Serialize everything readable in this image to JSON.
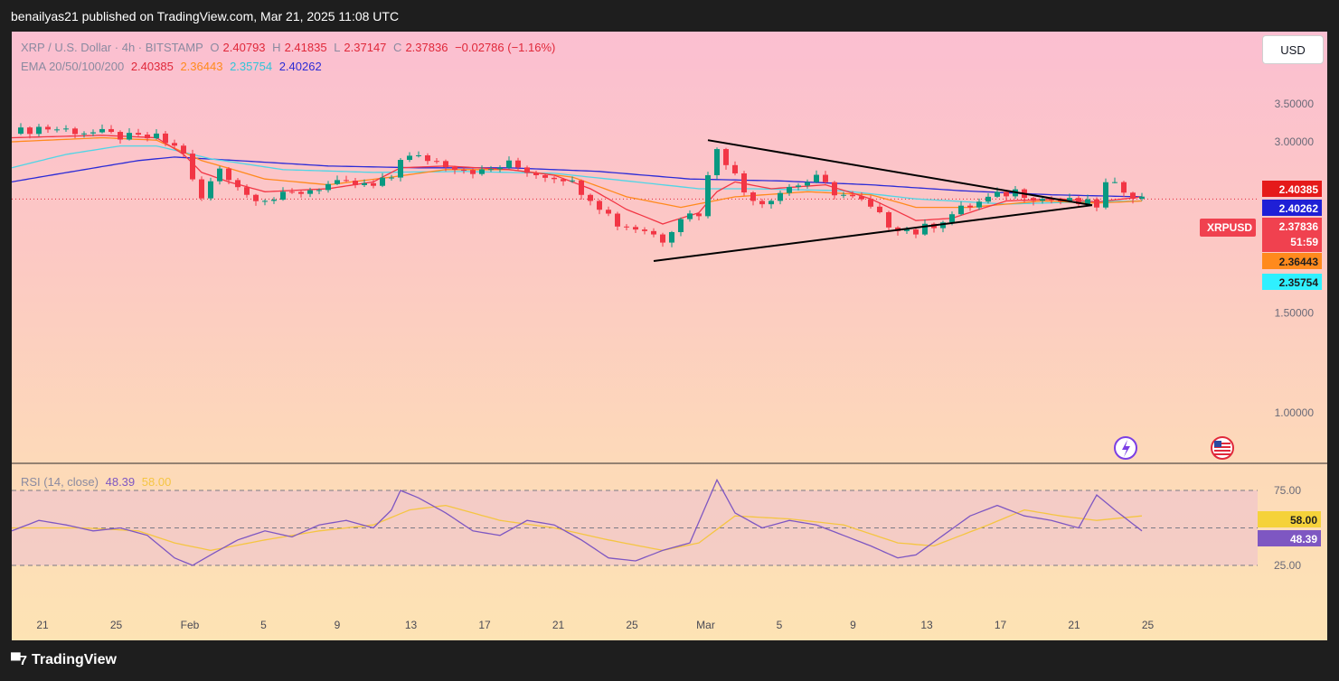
{
  "header": {
    "publisher": "benailyas21 published on TradingView.com, Mar 21, 2025 11:08 UTC"
  },
  "legend": {
    "symbol": "XRP / U.S. Dollar · 4h · BITSTAMP",
    "o_label": "O",
    "o": "2.40793",
    "h_label": "H",
    "h": "2.41835",
    "l_label": "L",
    "l": "2.37147",
    "c_label": "C",
    "c": "2.37836",
    "change": "−0.02786 (−1.16%)",
    "ema_label": "EMA 20/50/100/200",
    "ema20": "2.40385",
    "ema50": "2.36443",
    "ema100": "2.35754",
    "ema200": "2.40262"
  },
  "currency_button": "USD",
  "price_axis": {
    "ticks": [
      "3.50000",
      "3.00000",
      "1.50000",
      "1.00000"
    ]
  },
  "badges": {
    "ema20": "2.40385",
    "ema200": "2.40262",
    "symbol": "XRPUSD",
    "price": "2.37836",
    "countdown": "51:59",
    "ema50": "2.36443",
    "ema100": "2.35754"
  },
  "rsi": {
    "label": "RSI (14, close)",
    "value": "48.39",
    "ma": "58.00",
    "ticks": [
      "75.00",
      "25.00"
    ],
    "badge_ma": "58.00",
    "badge_value": "48.39"
  },
  "x_axis": {
    "ticks": [
      "21",
      "25",
      "Feb",
      "5",
      "9",
      "13",
      "17",
      "21",
      "25",
      "Mar",
      "5",
      "9",
      "13",
      "17",
      "21",
      "25"
    ]
  },
  "footer": {
    "logo": "TradingView"
  },
  "colors": {
    "up": "#089981",
    "down": "#f23645",
    "ema20": "#f23645",
    "ema50": "#ff8a1d",
    "ema100": "#4fd5e6",
    "ema200": "#2b2bd6",
    "rsi_line": "#7e57c2",
    "rsi_ma": "#f5c542"
  },
  "chart_data": {
    "type": "candlestick",
    "xlabels": [
      "21",
      "25",
      "Feb",
      "5",
      "9",
      "13",
      "17",
      "21",
      "25",
      "Mar",
      "5",
      "9",
      "13",
      "17",
      "21",
      "25"
    ],
    "price_keypoints": [
      [
        0,
        3.1
      ],
      [
        3,
        3.18
      ],
      [
        6,
        3.15
      ],
      [
        10,
        3.1
      ],
      [
        13,
        3.05
      ],
      [
        16,
        3.05
      ],
      [
        19,
        2.88
      ],
      [
        20,
        2.55
      ],
      [
        21,
        2.38
      ],
      [
        23,
        2.7
      ],
      [
        26,
        2.42
      ],
      [
        29,
        2.38
      ],
      [
        32,
        2.45
      ],
      [
        35,
        2.52
      ],
      [
        38,
        2.52
      ],
      [
        40,
        2.5
      ],
      [
        42,
        2.6
      ],
      [
        43,
        2.82
      ],
      [
        46,
        2.8
      ],
      [
        49,
        2.72
      ],
      [
        52,
        2.65
      ],
      [
        55,
        2.74
      ],
      [
        58,
        2.64
      ],
      [
        61,
        2.6
      ],
      [
        64,
        2.4
      ],
      [
        67,
        2.15
      ],
      [
        70,
        2.1
      ],
      [
        72,
        2.02
      ],
      [
        74,
        2.22
      ],
      [
        76,
        2.25
      ],
      [
        78,
        2.95
      ],
      [
        79,
        2.78
      ],
      [
        81,
        2.45
      ],
      [
        83,
        2.35
      ],
      [
        86,
        2.5
      ],
      [
        89,
        2.58
      ],
      [
        91,
        2.45
      ],
      [
        94,
        2.35
      ],
      [
        97,
        2.15
      ],
      [
        100,
        2.08
      ],
      [
        102,
        2.15
      ],
      [
        105,
        2.28
      ],
      [
        108,
        2.38
      ],
      [
        111,
        2.46
      ],
      [
        114,
        2.38
      ],
      [
        117,
        2.35
      ],
      [
        120,
        2.32
      ],
      [
        121,
        2.52
      ],
      [
        123,
        2.48
      ],
      [
        125,
        2.38
      ]
    ],
    "ema20_keypoints": [
      [
        0,
        3.05
      ],
      [
        10,
        3.08
      ],
      [
        16,
        3.05
      ],
      [
        19,
        2.85
      ],
      [
        21,
        2.65
      ],
      [
        24,
        2.55
      ],
      [
        28,
        2.45
      ],
      [
        35,
        2.48
      ],
      [
        40,
        2.55
      ],
      [
        43,
        2.7
      ],
      [
        48,
        2.72
      ],
      [
        55,
        2.68
      ],
      [
        60,
        2.62
      ],
      [
        64,
        2.48
      ],
      [
        68,
        2.28
      ],
      [
        72,
        2.15
      ],
      [
        76,
        2.25
      ],
      [
        78,
        2.45
      ],
      [
        80,
        2.55
      ],
      [
        84,
        2.48
      ],
      [
        90,
        2.52
      ],
      [
        95,
        2.38
      ],
      [
        100,
        2.18
      ],
      [
        104,
        2.2
      ],
      [
        110,
        2.36
      ],
      [
        116,
        2.38
      ],
      [
        120,
        2.35
      ],
      [
        125,
        2.4
      ]
    ],
    "ema50_keypoints": [
      [
        0,
        3.0
      ],
      [
        10,
        3.05
      ],
      [
        16,
        3.02
      ],
      [
        21,
        2.78
      ],
      [
        28,
        2.58
      ],
      [
        35,
        2.52
      ],
      [
        42,
        2.6
      ],
      [
        48,
        2.68
      ],
      [
        55,
        2.68
      ],
      [
        62,
        2.6
      ],
      [
        68,
        2.4
      ],
      [
        74,
        2.3
      ],
      [
        80,
        2.4
      ],
      [
        88,
        2.45
      ],
      [
        95,
        2.42
      ],
      [
        100,
        2.3
      ],
      [
        106,
        2.3
      ],
      [
        114,
        2.36
      ],
      [
        120,
        2.34
      ],
      [
        125,
        2.36
      ]
    ],
    "ema100_keypoints": [
      [
        0,
        2.7
      ],
      [
        6,
        2.85
      ],
      [
        12,
        2.95
      ],
      [
        16,
        2.95
      ],
      [
        22,
        2.8
      ],
      [
        30,
        2.68
      ],
      [
        40,
        2.65
      ],
      [
        50,
        2.66
      ],
      [
        60,
        2.64
      ],
      [
        68,
        2.56
      ],
      [
        76,
        2.48
      ],
      [
        82,
        2.48
      ],
      [
        92,
        2.46
      ],
      [
        100,
        2.38
      ],
      [
        110,
        2.33
      ],
      [
        118,
        2.35
      ],
      [
        125,
        2.36
      ]
    ],
    "ema200_keypoints": [
      [
        0,
        2.55
      ],
      [
        8,
        2.68
      ],
      [
        14,
        2.78
      ],
      [
        18,
        2.82
      ],
      [
        25,
        2.78
      ],
      [
        35,
        2.72
      ],
      [
        45,
        2.7
      ],
      [
        55,
        2.7
      ],
      [
        65,
        2.66
      ],
      [
        75,
        2.58
      ],
      [
        85,
        2.56
      ],
      [
        95,
        2.52
      ],
      [
        105,
        2.46
      ],
      [
        115,
        2.42
      ],
      [
        125,
        2.4
      ]
    ],
    "rsi_keypoints": [
      [
        0,
        48
      ],
      [
        3,
        55
      ],
      [
        6,
        52
      ],
      [
        9,
        48
      ],
      [
        12,
        50
      ],
      [
        15,
        45
      ],
      [
        18,
        30
      ],
      [
        20,
        25
      ],
      [
        22,
        32
      ],
      [
        25,
        42
      ],
      [
        28,
        48
      ],
      [
        31,
        44
      ],
      [
        34,
        52
      ],
      [
        37,
        55
      ],
      [
        40,
        50
      ],
      [
        42,
        62
      ],
      [
        43,
        75
      ],
      [
        45,
        70
      ],
      [
        48,
        60
      ],
      [
        51,
        48
      ],
      [
        54,
        45
      ],
      [
        57,
        55
      ],
      [
        60,
        52
      ],
      [
        63,
        42
      ],
      [
        66,
        30
      ],
      [
        69,
        28
      ],
      [
        72,
        35
      ],
      [
        75,
        40
      ],
      [
        78,
        82
      ],
      [
        80,
        60
      ],
      [
        83,
        50
      ],
      [
        86,
        55
      ],
      [
        89,
        52
      ],
      [
        92,
        45
      ],
      [
        95,
        38
      ],
      [
        98,
        30
      ],
      [
        100,
        32
      ],
      [
        103,
        45
      ],
      [
        106,
        58
      ],
      [
        109,
        65
      ],
      [
        112,
        58
      ],
      [
        115,
        55
      ],
      [
        118,
        50
      ],
      [
        120,
        72
      ],
      [
        122,
        62
      ],
      [
        125,
        48
      ]
    ],
    "rsi_ma_keypoints": [
      [
        0,
        50
      ],
      [
        8,
        50
      ],
      [
        14,
        48
      ],
      [
        18,
        40
      ],
      [
        22,
        35
      ],
      [
        28,
        42
      ],
      [
        34,
        48
      ],
      [
        40,
        52
      ],
      [
        44,
        62
      ],
      [
        48,
        65
      ],
      [
        54,
        55
      ],
      [
        60,
        50
      ],
      [
        66,
        42
      ],
      [
        72,
        35
      ],
      [
        76,
        40
      ],
      [
        80,
        58
      ],
      [
        86,
        56
      ],
      [
        92,
        52
      ],
      [
        98,
        40
      ],
      [
        102,
        38
      ],
      [
        108,
        52
      ],
      [
        112,
        62
      ],
      [
        116,
        58
      ],
      [
        120,
        55
      ],
      [
        125,
        58
      ]
    ],
    "triangle": {
      "upper": [
        [
          77,
          3.02
        ],
        [
          114,
          2.32
        ]
      ],
      "lower": [
        [
          71,
          1.85
        ],
        [
          114,
          2.32
        ]
      ]
    },
    "ylim_price": [
      0.75,
      3.7
    ],
    "ylim_rsi": [
      5,
      95
    ],
    "rsi_levels": [
      75,
      50,
      25
    ]
  }
}
